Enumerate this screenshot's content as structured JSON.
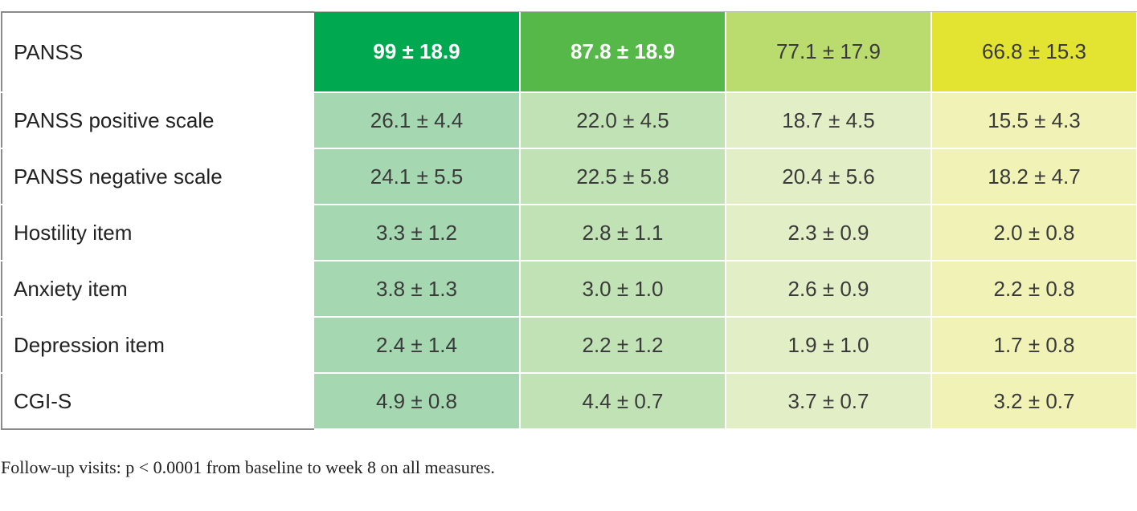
{
  "table": {
    "header": {
      "label": "PANSS",
      "values": [
        "99 ± 18.9",
        "87.8 ± 18.9",
        "77.1 ± 17.9",
        "66.8 ± 15.3"
      ],
      "colors": [
        "#00a94f",
        "#55b848",
        "#badb6e",
        "#e3e332"
      ],
      "bold": [
        true,
        true,
        false,
        false
      ]
    },
    "body_colors": [
      "#a5d7b0",
      "#c0e2b4",
      "#e2eec6",
      "#f1f3b6"
    ],
    "rows": [
      {
        "label": "PANSS positive scale",
        "values": [
          "26.1 ± 4.4",
          "22.0 ± 4.5",
          "18.7 ± 4.5",
          "15.5 ± 4.3"
        ]
      },
      {
        "label": "PANSS negative scale",
        "values": [
          "24.1 ± 5.5",
          "22.5 ± 5.8",
          "20.4 ± 5.6",
          "18.2 ± 4.7"
        ]
      },
      {
        "label": "Hostility item",
        "values": [
          "3.3 ± 1.2",
          "2.8 ± 1.1",
          "2.3 ± 0.9",
          "2.0 ± 0.8"
        ]
      },
      {
        "label": "Anxiety item",
        "values": [
          "3.8 ± 1.3",
          "3.0 ± 1.0",
          "2.6 ± 0.9",
          "2.2 ± 0.8"
        ]
      },
      {
        "label": "Depression item",
        "values": [
          "2.4 ± 1.4",
          "2.2 ± 1.2",
          "1.9 ± 1.0",
          "1.7 ± 0.8"
        ]
      },
      {
        "label": "CGI-S",
        "values": [
          "4.9 ± 0.8",
          "4.4 ± 0.7",
          "3.7 ± 0.7",
          "3.2 ± 0.7"
        ]
      }
    ]
  },
  "footnote": "Follow-up visits: p < 0.0001 from baseline to week 8 on all measures."
}
